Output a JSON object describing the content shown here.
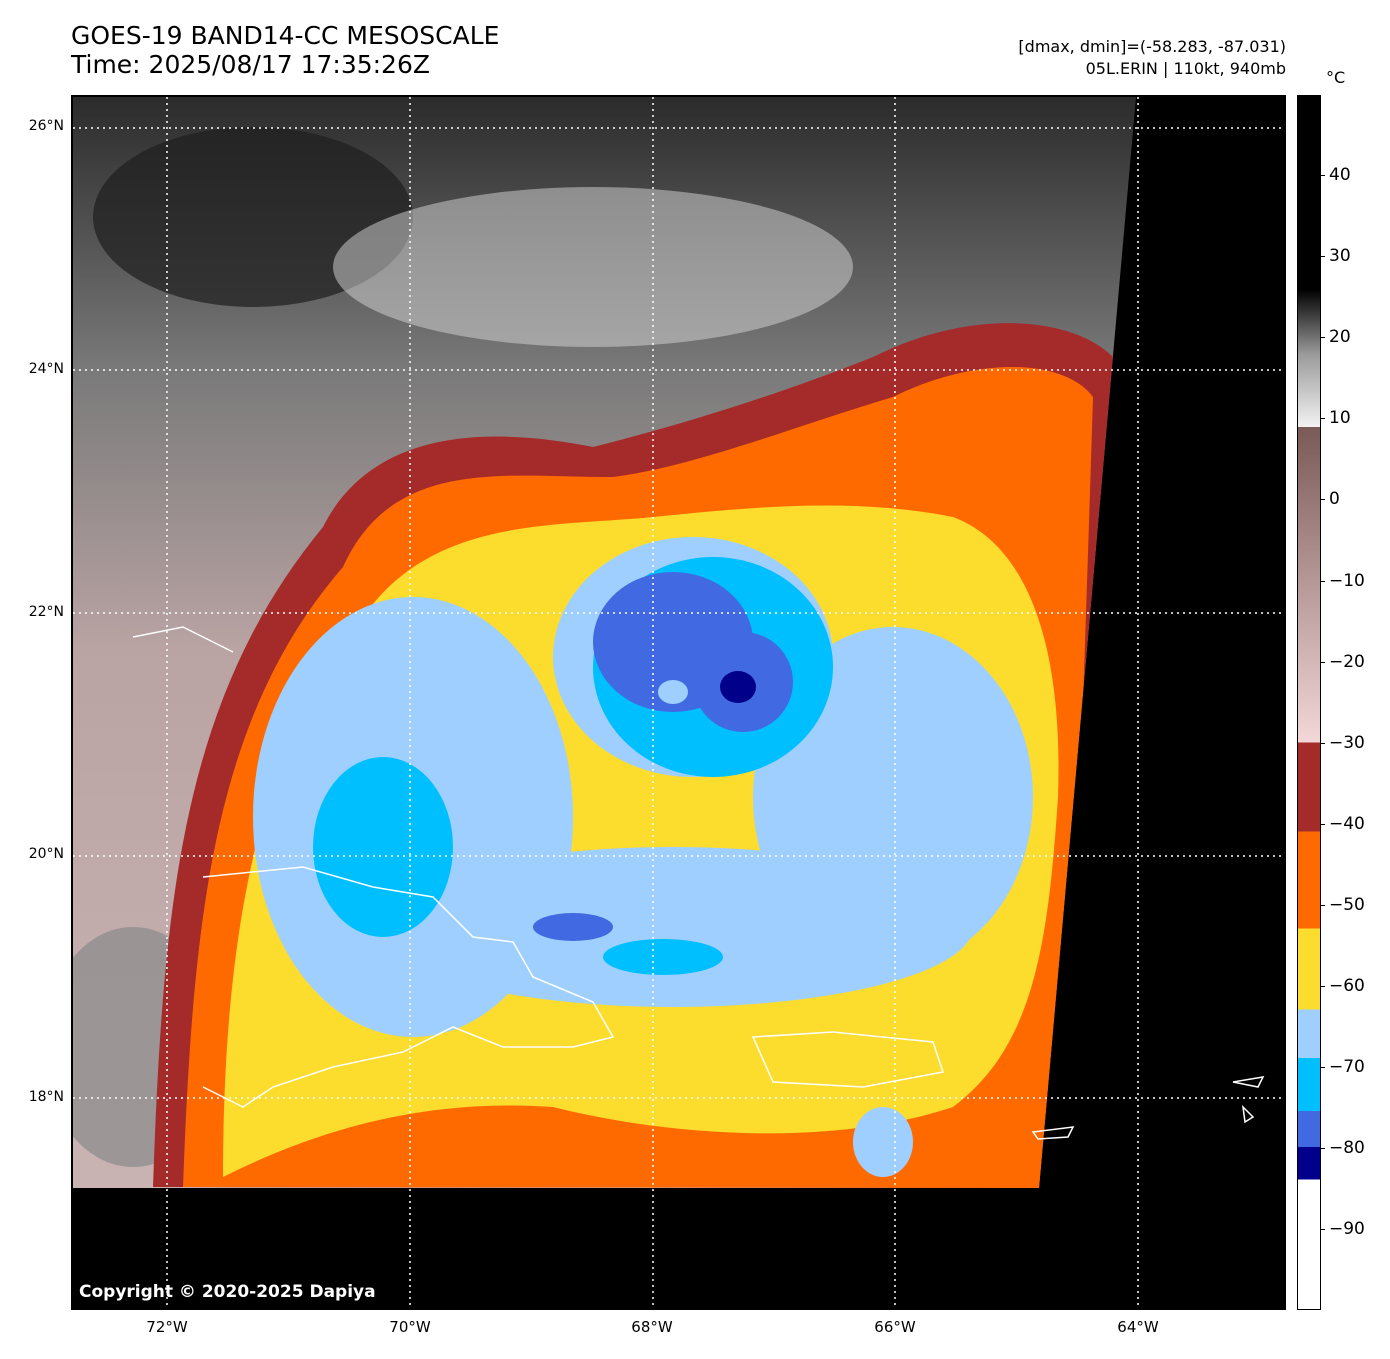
{
  "header": {
    "title_line1": "GOES-19 BAND14-CC MESOSCALE",
    "title_line2": "Time: 2025/08/17 17:35:26Z",
    "range_text": "[dmax, dmin]=(-58.283, -87.031)",
    "storm_text": "05L.ERIN | 110kt, 940mb"
  },
  "map": {
    "copyright": "Copyright © 2020-2025 Dapiya",
    "lat_labels": [
      "26°N",
      "24°N",
      "22°N",
      "20°N",
      "18°N"
    ],
    "lon_labels": [
      "72°W",
      "70°W",
      "68°W",
      "66°W",
      "64°W"
    ],
    "storm_center": {
      "lat": 21.3,
      "lon": 67.9
    }
  },
  "colorbar": {
    "unit": "°C",
    "ticks": [
      "40",
      "30",
      "20",
      "10",
      "0",
      "−10",
      "−20",
      "−30",
      "−40",
      "−50",
      "−60",
      "−70",
      "−80",
      "−90"
    ],
    "colors": {
      "warm_black": "#000000",
      "warm_gray": "#9a9a9a",
      "warm_white": "#f2f2f2",
      "brown": "#7a5a57",
      "pink": "#f3d7d9",
      "dark_red": "#a52a2a",
      "orange": "#ff6a00",
      "yellow": "#fcdc2c",
      "light_blue": "#9fcfff",
      "sky_blue": "#00bfff",
      "royal_blue": "#4169e1",
      "navy": "#00008b",
      "white": "#ffffff"
    }
  }
}
